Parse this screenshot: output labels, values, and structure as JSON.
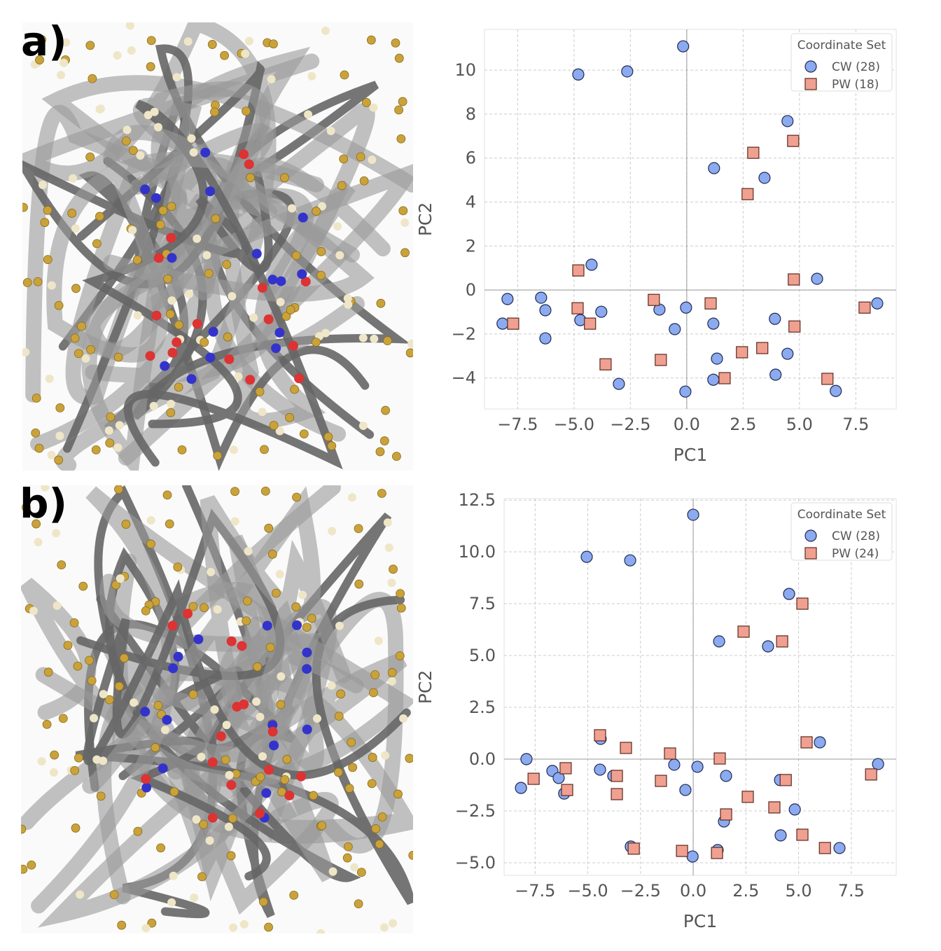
{
  "panels": [
    {
      "label": "a)"
    },
    {
      "label": "b)"
    }
  ],
  "colors": {
    "CW": "#8caaf0",
    "CW_edge": "#1e2a50",
    "PW": "#f0a090",
    "PW_edge": "#5a2a20",
    "grid": "#cccccc"
  },
  "chart_data": [
    {
      "type": "scatter",
      "title": "",
      "xlabel": "PC1",
      "ylabel": "PC2",
      "xlim": [
        -8.97,
        9.29
      ],
      "ylim": [
        -5.41,
        11.85
      ],
      "xticks": [
        -7.5,
        -5.0,
        -2.5,
        0.0,
        2.5,
        5.0,
        7.5
      ],
      "xtick_labels": [
        "−7.5",
        "−5.0",
        "−2.5",
        "0.0",
        "2.5",
        "5.0",
        "7.5"
      ],
      "yticks": [
        -4,
        -2,
        0,
        2,
        4,
        6,
        8,
        10
      ],
      "ytick_labels": [
        "−4",
        "−2",
        "0",
        "2",
        "4",
        "6",
        "8",
        "10"
      ],
      "grid": true,
      "legend_title": "Coordinate Set",
      "legend_position": "top-right",
      "series": [
        {
          "name": "CW (28)",
          "marker": "circle",
          "points": [
            [
              -4.81,
              9.8
            ],
            [
              -2.64,
              9.94
            ],
            [
              -0.16,
              11.08
            ],
            [
              4.47,
              7.68
            ],
            [
              1.21,
              5.54
            ],
            [
              3.45,
              5.1
            ],
            [
              -4.22,
              1.15
            ],
            [
              5.78,
              0.51
            ],
            [
              -7.95,
              -0.41
            ],
            [
              -6.46,
              -0.35
            ],
            [
              -6.27,
              -0.92
            ],
            [
              -8.17,
              -1.53
            ],
            [
              -6.27,
              -2.2
            ],
            [
              -4.72,
              -1.37
            ],
            [
              -3.79,
              -0.99
            ],
            [
              -1.21,
              -0.89
            ],
            [
              -0.03,
              -0.8
            ],
            [
              -0.53,
              -1.78
            ],
            [
              1.18,
              -1.53
            ],
            [
              3.91,
              -1.31
            ],
            [
              1.34,
              -3.12
            ],
            [
              4.47,
              -2.9
            ],
            [
              1.18,
              -4.08
            ],
            [
              3.94,
              -3.85
            ],
            [
              -3.01,
              -4.27
            ],
            [
              -0.06,
              -4.62
            ],
            [
              6.61,
              -4.59
            ],
            [
              8.45,
              -0.61
            ]
          ]
        },
        {
          "name": "PW (18)",
          "marker": "square",
          "points": [
            [
              4.72,
              6.78
            ],
            [
              2.95,
              6.24
            ],
            [
              2.7,
              4.36
            ],
            [
              -4.81,
              0.89
            ],
            [
              4.75,
              0.48
            ],
            [
              -7.7,
              -1.53
            ],
            [
              -4.84,
              -0.83
            ],
            [
              -4.29,
              -1.53
            ],
            [
              -3.6,
              -3.38
            ],
            [
              -1.46,
              -0.45
            ],
            [
              -1.15,
              -3.18
            ],
            [
              1.06,
              -0.61
            ],
            [
              1.68,
              -4.01
            ],
            [
              2.45,
              -2.83
            ],
            [
              3.35,
              -2.64
            ],
            [
              4.78,
              -1.66
            ],
            [
              6.24,
              -4.04
            ],
            [
              7.89,
              -0.8
            ]
          ]
        }
      ]
    },
    {
      "type": "scatter",
      "title": "",
      "xlabel": "PC1",
      "ylabel": "PC2",
      "xlim": [
        -8.97,
        9.63
      ],
      "ylim": [
        -5.61,
        12.57
      ],
      "xticks": [
        -7.5,
        -5.0,
        -2.5,
        0.0,
        2.5,
        5.0,
        7.5
      ],
      "xtick_labels": [
        "−7.5",
        "−5.0",
        "−2.5",
        "0.0",
        "2.5",
        "5.0",
        "7.5"
      ],
      "yticks": [
        -5.0,
        -2.5,
        0.0,
        2.5,
        5.0,
        7.5,
        10.0,
        12.5
      ],
      "ytick_labels": [
        "−5.0",
        "−2.5",
        "0.0",
        "2.5",
        "5.0",
        "7.5",
        "10.0",
        "12.5"
      ],
      "grid": true,
      "legend_title": "Coordinate Set",
      "legend_position": "top-right",
      "series": [
        {
          "name": "CW (28)",
          "marker": "circle",
          "points": [
            [
              -5.05,
              9.76
            ],
            [
              -2.99,
              9.59
            ],
            [
              0.0,
              11.79
            ],
            [
              4.55,
              7.97
            ],
            [
              1.23,
              5.68
            ],
            [
              3.55,
              5.44
            ],
            [
              -4.39,
              0.98
            ],
            [
              6.01,
              0.81
            ],
            [
              -7.91,
              0.0
            ],
            [
              -8.17,
              -1.39
            ],
            [
              -6.68,
              -0.57
            ],
            [
              -6.38,
              -0.91
            ],
            [
              -6.12,
              -1.66
            ],
            [
              -4.42,
              -0.51
            ],
            [
              -3.79,
              -0.81
            ],
            [
              -0.9,
              -0.27
            ],
            [
              0.2,
              -0.37
            ],
            [
              -0.37,
              -1.49
            ],
            [
              1.56,
              -0.81
            ],
            [
              4.12,
              -1.01
            ],
            [
              1.46,
              -3.01
            ],
            [
              4.82,
              -2.43
            ],
            [
              4.15,
              -3.68
            ],
            [
              1.16,
              -4.39
            ],
            [
              -2.96,
              -4.22
            ],
            [
              -0.03,
              -4.7
            ],
            [
              6.94,
              -4.29
            ],
            [
              8.77,
              -0.24
            ]
          ]
        },
        {
          "name": "PW (24)",
          "marker": "square",
          "points": [
            [
              5.18,
              7.5
            ],
            [
              2.39,
              6.15
            ],
            [
              4.22,
              5.68
            ],
            [
              -4.42,
              1.15
            ],
            [
              5.38,
              0.81
            ],
            [
              -3.19,
              0.54
            ],
            [
              -1.1,
              0.27
            ],
            [
              1.26,
              0.03
            ],
            [
              -7.57,
              -0.95
            ],
            [
              -6.05,
              -0.44
            ],
            [
              -5.98,
              -1.49
            ],
            [
              -3.62,
              -0.81
            ],
            [
              -3.62,
              -1.69
            ],
            [
              -1.53,
              -1.05
            ],
            [
              4.39,
              -1.01
            ],
            [
              2.59,
              -1.82
            ],
            [
              3.85,
              -2.33
            ],
            [
              1.56,
              -2.67
            ],
            [
              5.18,
              -3.65
            ],
            [
              -2.82,
              -4.32
            ],
            [
              -0.53,
              -4.43
            ],
            [
              1.13,
              -4.53
            ],
            [
              6.25,
              -4.29
            ],
            [
              8.44,
              -0.74
            ]
          ]
        }
      ]
    }
  ]
}
